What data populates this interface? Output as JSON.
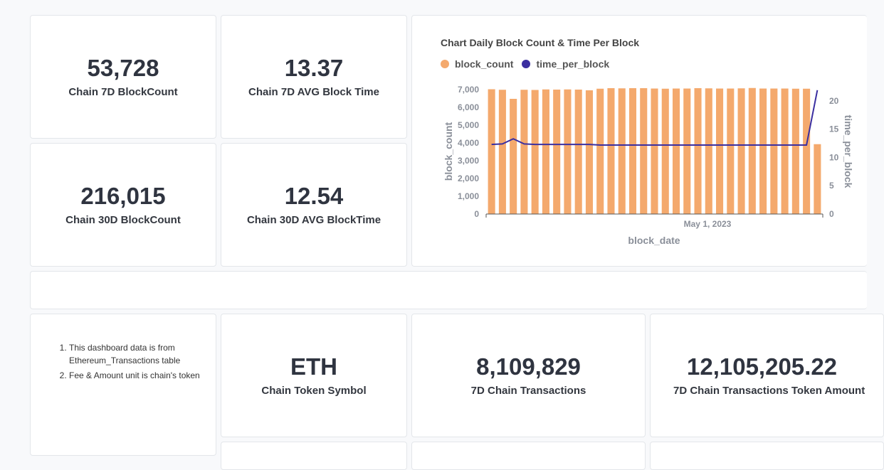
{
  "kpis": {
    "blockcount_7d": {
      "value": "53,728",
      "label": "Chain 7D BlockCount"
    },
    "avg_block_time_7d": {
      "value": "13.37",
      "label": "Chain 7D AVG Block Time"
    },
    "blockcount_30d": {
      "value": "216,015",
      "label": "Chain 30D BlockCount"
    },
    "avg_block_time_30d": {
      "value": "12.54",
      "label": "Chain 30D AVG BlockTime"
    },
    "token_symbol": {
      "value": "ETH",
      "label": "Chain Token Symbol"
    },
    "transactions_7d": {
      "value": "8,109,829",
      "label": "7D Chain Transactions"
    },
    "transactions_token_amount_7d": {
      "value": "12,105,205.22",
      "label": "7D Chain Transactions Token Amount"
    }
  },
  "notes": {
    "items": [
      "This dashboard data is from Ethereum_Transactions table",
      "Fee & Amount unit is chain's token"
    ]
  },
  "colors": {
    "bar": "#f4a96d",
    "line": "#3b2fa0",
    "axis_text": "#8a8f99"
  },
  "chart_data": {
    "type": "bar",
    "title": "Chart Daily Block Count & Time Per Block",
    "xlabel": "block_date",
    "ylabel": "block_count",
    "y2label": "time_per_block",
    "x_tick_labels": [
      "May 1, 2023"
    ],
    "ylim": [
      0,
      7000
    ],
    "y_ticks": [
      "0",
      "1,000",
      "2,000",
      "3,000",
      "4,000",
      "5,000",
      "6,000",
      "7,000"
    ],
    "y2lim": [
      0,
      22
    ],
    "y2_ticks": [
      "0",
      "5",
      "10",
      "15",
      "20"
    ],
    "legend_position": "top-left",
    "series": [
      {
        "name": "block_count",
        "type": "bar",
        "axis": "left",
        "values": [
          7020,
          6990,
          6480,
          6990,
          6980,
          7010,
          7000,
          7010,
          7000,
          6960,
          7050,
          7080,
          7070,
          7080,
          7080,
          7060,
          7050,
          7060,
          7060,
          7080,
          7070,
          7060,
          7060,
          7070,
          7090,
          7060,
          7060,
          7060,
          7050,
          7050,
          3930
        ]
      },
      {
        "name": "time_per_block",
        "type": "line",
        "axis": "right",
        "values": [
          12.3,
          12.4,
          13.3,
          12.4,
          12.3,
          12.3,
          12.3,
          12.3,
          12.3,
          12.3,
          12.2,
          12.2,
          12.2,
          12.2,
          12.2,
          12.2,
          12.2,
          12.2,
          12.2,
          12.2,
          12.2,
          12.2,
          12.2,
          12.2,
          12.2,
          12.2,
          12.2,
          12.2,
          12.2,
          12.2,
          21.9
        ]
      }
    ]
  }
}
